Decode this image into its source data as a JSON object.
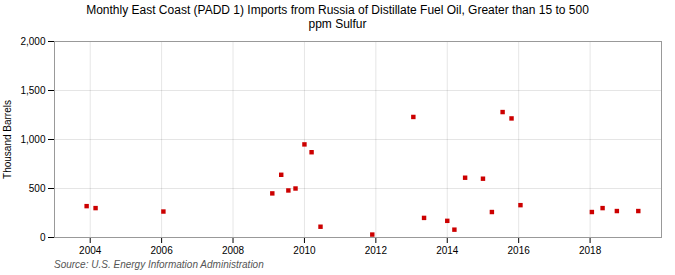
{
  "chart_data": {
    "type": "scatter",
    "title": "Monthly East Coast (PADD 1) Imports from Russia of Distillate Fuel Oil, Greater than 15 to 500\nppm Sulfur",
    "ylabel": "Thousand Barrels",
    "source": "Source: U.S. Energy Information Administration",
    "color": "#cc0000",
    "marker": "square",
    "grid": true,
    "xlim": [
      2003.0,
      2020.0
    ],
    "ylim": [
      0,
      2000
    ],
    "xticks": [
      2004,
      2006,
      2008,
      2010,
      2012,
      2014,
      2016,
      2018
    ],
    "yticks": [
      0,
      500,
      {
        "value": 1000,
        "label": "1,000"
      },
      {
        "value": 1500,
        "label": "1,500"
      },
      {
        "value": 2000,
        "label": "2,000"
      }
    ],
    "x": [
      2003.9,
      2004.15,
      2006.05,
      2009.1,
      2009.35,
      2009.55,
      2009.75,
      2010.0,
      2010.2,
      2010.45,
      2011.9,
      2013.05,
      2013.35,
      2014.0,
      2014.2,
      2014.5,
      2015.0,
      2015.25,
      2015.55,
      2015.8,
      2016.05,
      2018.05,
      2018.35,
      2018.75,
      2019.35
    ],
    "values": [
      320,
      300,
      265,
      450,
      640,
      480,
      500,
      950,
      870,
      110,
      30,
      1230,
      200,
      170,
      80,
      610,
      600,
      260,
      1280,
      1215,
      330,
      260,
      300,
      270,
      270
    ]
  }
}
